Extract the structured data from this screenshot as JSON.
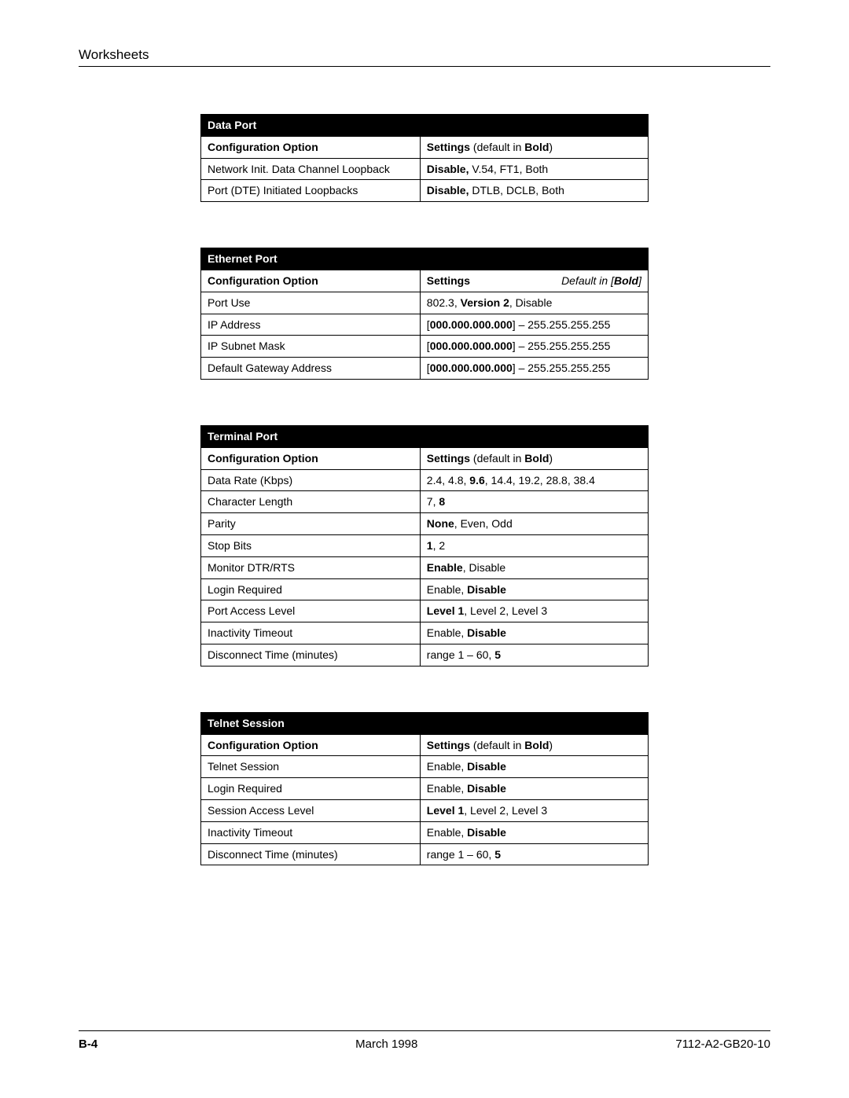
{
  "header": {
    "section": "Worksheets"
  },
  "footer": {
    "page": "B-4",
    "date": "March 1998",
    "docid": "7112-A2-GB20-10"
  },
  "tables": [
    {
      "title": "Data Port",
      "head_left": "Configuration Option",
      "head_right_html": "<span class='b'>Settings</span> <span class='normal'>(default in </span><span class='b'>Bold</span><span class='normal'>)</span>",
      "rows": [
        {
          "opt": "Network Init. Data Channel Loopback",
          "set": "<span class='b'>Disable,</span> V.54, FT1, Both"
        },
        {
          "opt": "Port (DTE) Initiated Loopbacks",
          "set": "<span class='b'>Disable,</span> DTLB, DCLB, Both"
        }
      ]
    },
    {
      "title": "Ethernet Port",
      "head_left": "Configuration Option",
      "head_right_html": "<span class='b'>Settings</span><span class='italic'>Default in [<span class='ib'>Bold</span>]</span>",
      "rows": [
        {
          "opt": "Port Use",
          "set": "802.3, <span class='b'>Version 2</span>, Disable"
        },
        {
          "opt": "IP Address",
          "set": "[<span class='b'>000.000.000.000</span>] – 255.255.255.255"
        },
        {
          "opt": "IP Subnet Mask",
          "set": "[<span class='b'>000.000.000.000</span>] – 255.255.255.255"
        },
        {
          "opt": "Default Gateway Address",
          "set": "[<span class='b'>000.000.000.000</span>] – 255.255.255.255"
        }
      ]
    },
    {
      "title": "Terminal Port",
      "head_left": "Configuration Option",
      "head_right_html": "<span class='b'>Settings</span> <span class='normal'>(default in </span><span class='b'>Bold</span><span class='normal'>)</span>",
      "rows": [
        {
          "opt": "Data Rate (Kbps)",
          "set": "2.4, 4.8, <span class='b'>9.6</span>, 14.4, 19.2, 28.8, 38.4"
        },
        {
          "opt": "Character Length",
          "set": "7, <span class='b'>8</span>"
        },
        {
          "opt": "Parity",
          "set": "<span class='b'>None</span>, Even, Odd"
        },
        {
          "opt": "Stop Bits",
          "set": "<span class='b'>1</span>, 2"
        },
        {
          "opt": "Monitor DTR/RTS",
          "set": "<span class='b'>Enable</span>, Disable"
        },
        {
          "opt": "Login Required",
          "set": "Enable, <span class='b'>Disable</span>"
        },
        {
          "opt": "Port Access Level",
          "set": "<span class='b'>Level 1</span>, Level 2, Level 3"
        },
        {
          "opt": "Inactivity Timeout",
          "set": "Enable, <span class='b'>Disable</span>"
        },
        {
          "opt": "Disconnect Time (minutes)",
          "set": "range 1 – 60, <span class='b'>5</span>"
        }
      ]
    },
    {
      "title": "Telnet Session",
      "head_left": "Configuration Option",
      "head_right_html": "<span class='b'>Settings</span> <span class='normal'>(default in </span><span class='b'>Bold</span><span class='normal'>)</span>",
      "rows": [
        {
          "opt": "Telnet Session",
          "set": "Enable, <span class='b'>Disable</span>"
        },
        {
          "opt": "Login Required",
          "set": "Enable, <span class='b'>Disable</span>"
        },
        {
          "opt": "Session Access Level",
          "set": "<span class='b'>Level 1</span>, Level 2, Level 3"
        },
        {
          "opt": "Inactivity Timeout",
          "set": "Enable, <span class='b'>Disable</span>"
        },
        {
          "opt": "Disconnect Time (minutes)",
          "set": "range 1 – 60, <span class='b'>5</span>"
        }
      ]
    }
  ]
}
